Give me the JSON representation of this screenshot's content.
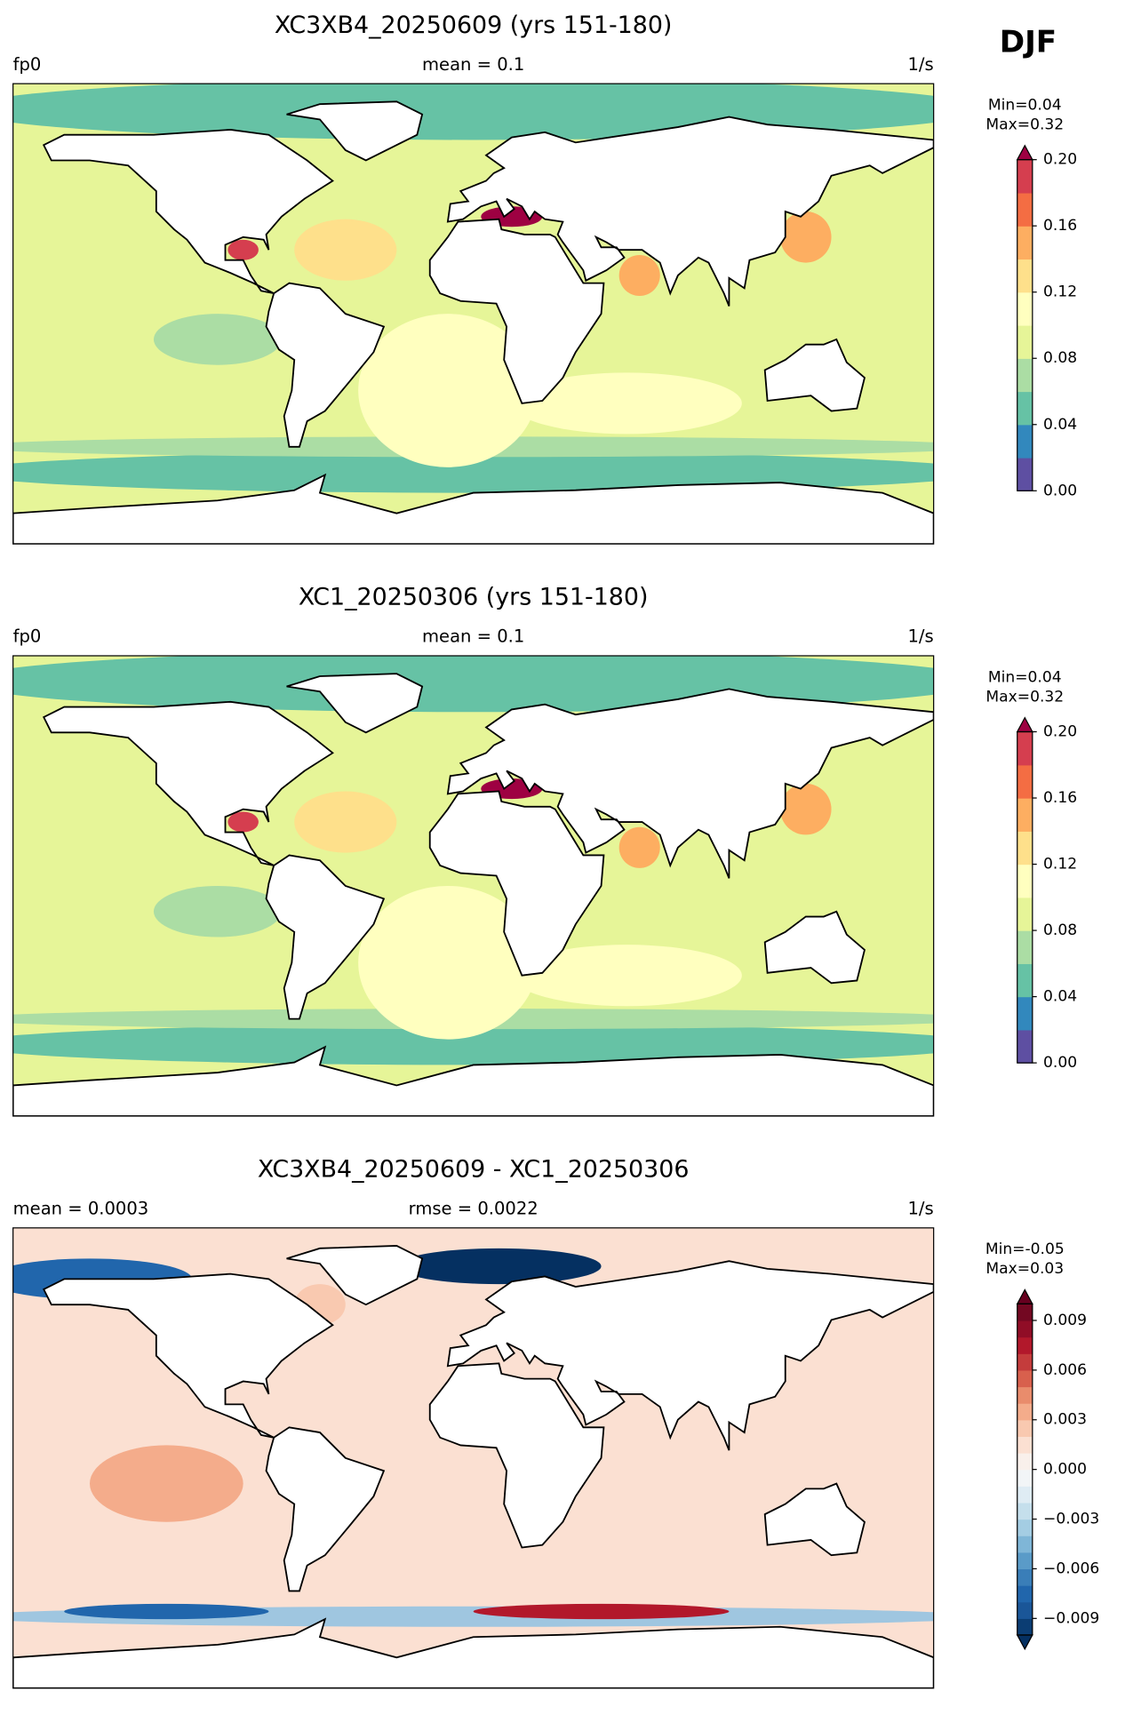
{
  "season": "DJF",
  "chart_data": [
    {
      "type": "map",
      "title": "XC3XB4_20250609 (yrs 151-180)",
      "left_label": "fp0",
      "center_label": "mean = 0.1",
      "right_label": "1/s",
      "min_label": "Min=0.04",
      "max_label": "Max=0.32",
      "colorbar": {
        "clim": [
          0,
          0.2
        ],
        "extend": "max",
        "colors": [
          "#5e4fa2",
          "#3288bd",
          "#66c2a5",
          "#abdda4",
          "#e6f598",
          "#ffffbf",
          "#fee08b",
          "#fdae61",
          "#f46d43",
          "#d53e4f"
        ],
        "over_color": "#9e0142",
        "ticks": [
          {
            "value": 0,
            "label": "0.00"
          },
          0.04,
          0.08,
          0.12,
          0.16,
          {
            "value": 0.2,
            "label": "0.20"
          }
        ]
      }
    },
    {
      "type": "map",
      "title": "XC1_20250306 (yrs 151-180)",
      "left_label": "fp0",
      "center_label": "mean = 0.1",
      "right_label": "1/s",
      "min_label": "Min=0.04",
      "max_label": "Max=0.32",
      "colorbar": {
        "clim": [
          0,
          0.2
        ],
        "extend": "max",
        "colors": [
          "#5e4fa2",
          "#3288bd",
          "#66c2a5",
          "#abdda4",
          "#e6f598",
          "#ffffbf",
          "#fee08b",
          "#fdae61",
          "#f46d43",
          "#d53e4f"
        ],
        "over_color": "#9e0142",
        "ticks": [
          {
            "value": 0,
            "label": "0.00"
          },
          0.04,
          0.08,
          0.12,
          0.16,
          {
            "value": 0.2,
            "label": "0.20"
          }
        ]
      }
    },
    {
      "type": "map",
      "title": "XC3XB4_20250609 - XC1_20250306",
      "left_label": "mean = 0.0003",
      "center_label": "rmse = 0.0022",
      "right_label": "1/s",
      "min_label": "Min=-0.05",
      "max_label": "Max=0.03",
      "colorbar": {
        "clim": [
          -0.01,
          0.01
        ],
        "extend": "both",
        "colors": [
          "#0b3d73",
          "#1a5698",
          "#2166ac",
          "#3a7eb8",
          "#5a9bc8",
          "#7fb6d7",
          "#a4cde3",
          "#c5dfec",
          "#dfecf4",
          "#f2f5f7",
          "#f9f0eb",
          "#fbe0d2",
          "#f9c9b0",
          "#f4ac8b",
          "#e98c6c",
          "#d8604d",
          "#c43c3c",
          "#b2182b",
          "#900d26",
          "#730822"
        ],
        "under_color": "#053061",
        "over_color": "#67001f",
        "ticks": [
          {
            "value": -0.009,
            "label": "−0.009"
          },
          {
            "value": -0.006,
            "label": "−0.006"
          },
          {
            "value": -0.003,
            "label": "−0.003"
          },
          {
            "value": 0,
            "label": "0.000"
          },
          0.003,
          0.006,
          0.009
        ]
      }
    }
  ]
}
